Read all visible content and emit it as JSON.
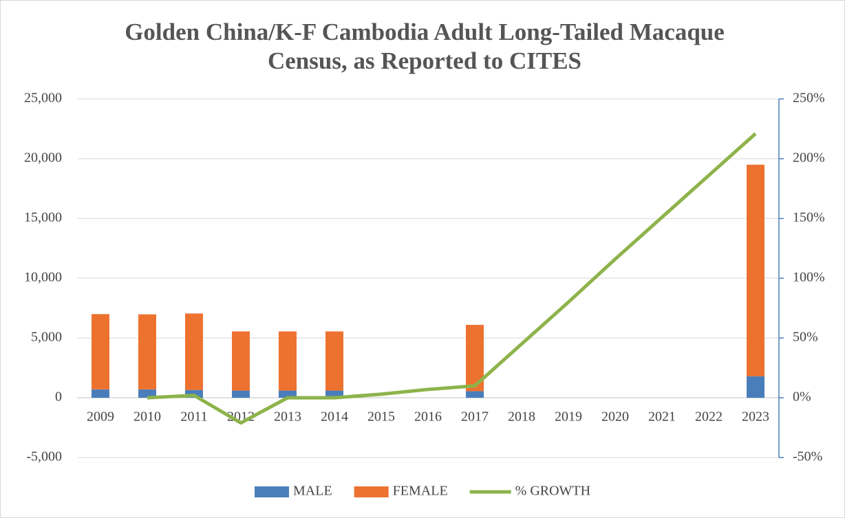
{
  "chart_data": {
    "type": "bar-line",
    "title": [
      "Golden China/K-F Cambodia Adult Long-Tailed Macaque",
      "Census, as Reported to CITES"
    ],
    "categories": [
      "2009",
      "2010",
      "2011",
      "2012",
      "2013",
      "2014",
      "2015",
      "2016",
      "2017",
      "2018",
      "2019",
      "2020",
      "2021",
      "2022",
      "2023"
    ],
    "series": [
      {
        "name": "MALE",
        "color": "#4a7ebb",
        "stacked": true,
        "values": [
          700,
          700,
          650,
          600,
          600,
          600,
          null,
          null,
          550,
          null,
          null,
          null,
          null,
          null,
          1800
        ]
      },
      {
        "name": "FEMALE",
        "color": "#ed7230",
        "stacked": true,
        "values": [
          6300,
          6280,
          6400,
          4950,
          4950,
          4950,
          null,
          null,
          5550,
          null,
          null,
          null,
          null,
          null,
          17700
        ]
      },
      {
        "name": "% GROWTH",
        "color": "#8db34a",
        "axis": "y2",
        "line": true,
        "values": [
          null,
          0,
          2,
          -21,
          0,
          0,
          3,
          7,
          10,
          45,
          80,
          116,
          151,
          186,
          221
        ]
      }
    ],
    "ylim": [
      -5000,
      25000
    ],
    "yticks": [
      {
        "value": -5000,
        "label": "-5,000"
      },
      0,
      {
        "value": 5000,
        "label": "5,000"
      },
      {
        "value": 10000,
        "label": "10,000"
      },
      {
        "value": 15000,
        "label": "15,000"
      },
      {
        "value": 20000,
        "label": "20,000"
      },
      {
        "value": 25000,
        "label": "25,000"
      }
    ],
    "y2lim": [
      -50,
      250
    ],
    "y2ticks": [
      {
        "value": -50,
        "label": "-50%"
      },
      {
        "value": 0,
        "label": "0%"
      },
      {
        "value": 50,
        "label": "50%"
      },
      {
        "value": 100,
        "label": "100%"
      },
      {
        "value": 150,
        "label": "150%"
      },
      {
        "value": 200,
        "label": "200%"
      },
      {
        "value": 250,
        "label": "250%"
      }
    ],
    "grid": true,
    "legend": "bottom"
  }
}
